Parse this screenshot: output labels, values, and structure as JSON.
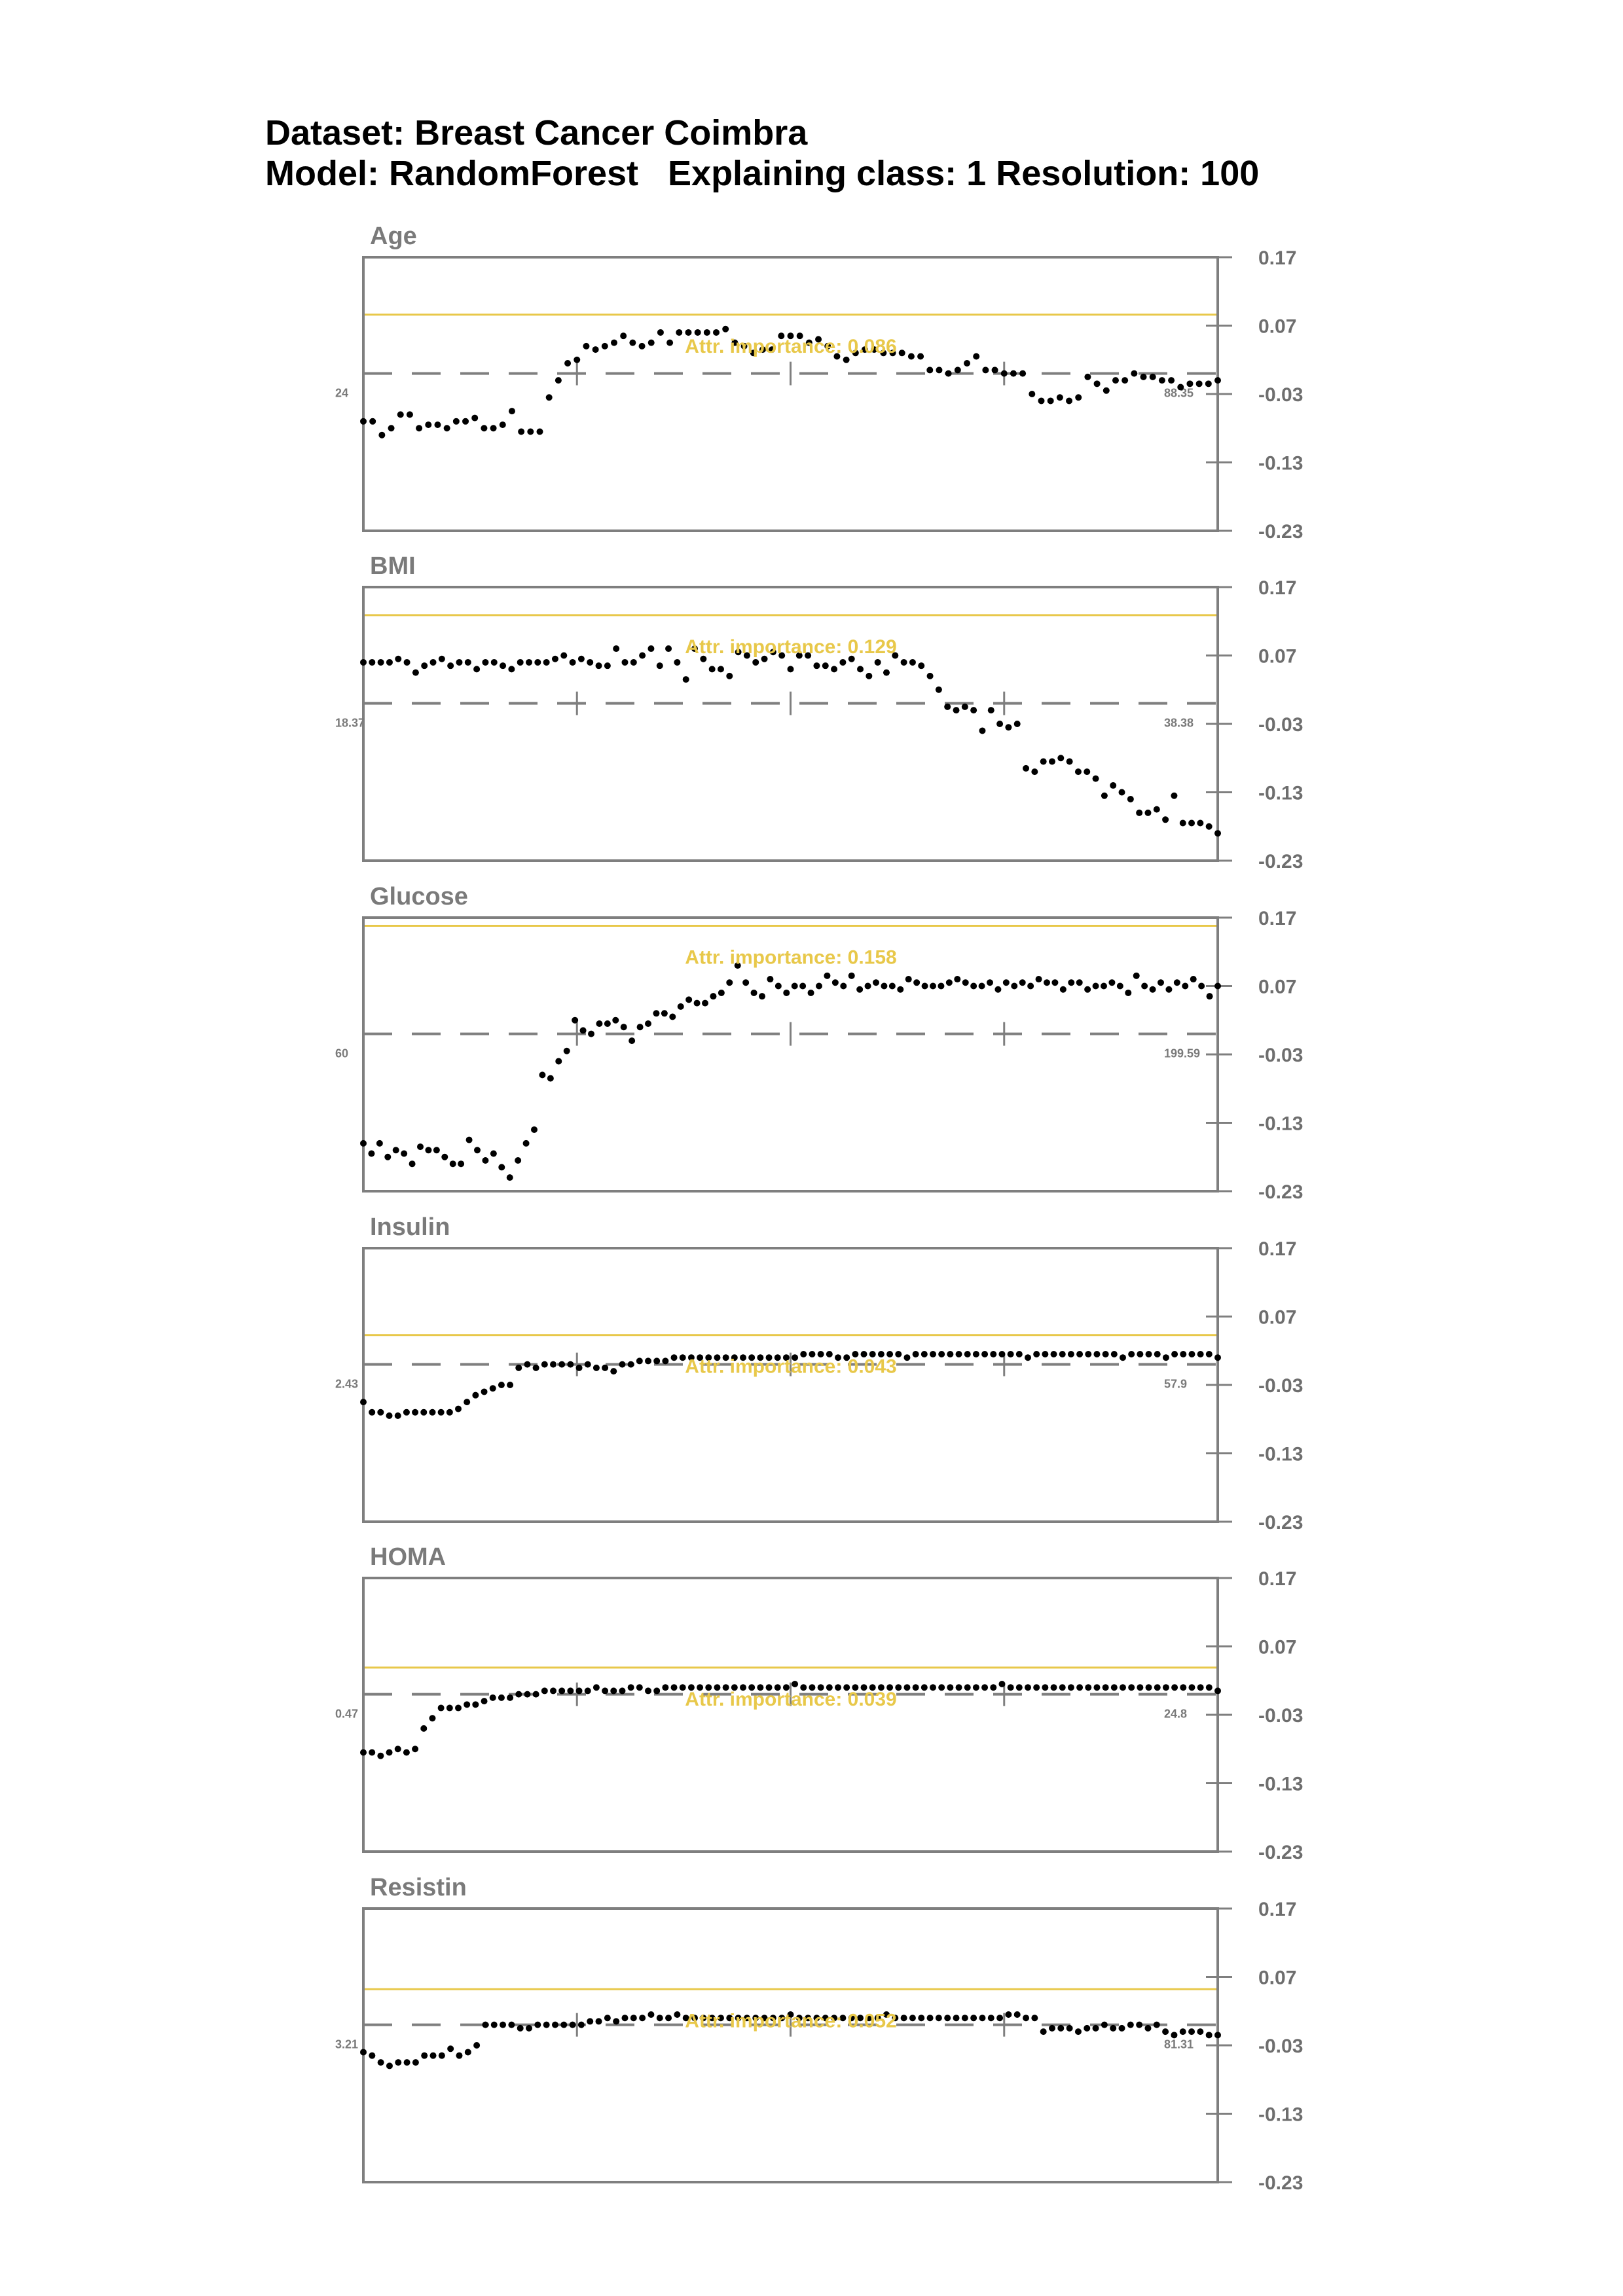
{
  "header": {
    "line1": "Dataset: Breast Cancer Coimbra",
    "line2": "Model: RandomForest   Explaining class: 1 Resolution: 100"
  },
  "colors": {
    "frame": "#7f7f7f",
    "importance_line": "#e8c84a",
    "points": "#000000",
    "baseline": "#7f7f7f"
  },
  "chart_data": [
    {
      "type": "scatter",
      "title": "Age",
      "importance_label": "Attr. importance: 0.086",
      "importance_value": 0.086,
      "x_min_label": "24",
      "x_max_label": "88.35",
      "ylim": [
        -0.23,
        0.17
      ],
      "yticks": [
        "0.17",
        "0.07",
        "-0.03",
        "-0.13",
        "-0.23"
      ],
      "baseline": 0.0,
      "values": [
        -0.07,
        -0.07,
        -0.09,
        -0.08,
        -0.06,
        -0.06,
        -0.08,
        -0.075,
        -0.075,
        -0.08,
        -0.07,
        -0.07,
        -0.065,
        -0.08,
        -0.08,
        -0.075,
        -0.055,
        -0.085,
        -0.085,
        -0.085,
        -0.035,
        -0.01,
        0.015,
        0.02,
        0.04,
        0.035,
        0.04,
        0.045,
        0.055,
        0.045,
        0.04,
        0.045,
        0.06,
        0.045,
        0.06,
        0.06,
        0.06,
        0.06,
        0.06,
        0.065,
        0.045,
        0.04,
        0.03,
        0.035,
        0.035,
        0.055,
        0.055,
        0.055,
        0.045,
        0.05,
        0.04,
        0.025,
        0.02,
        0.03,
        0.035,
        0.035,
        0.03,
        0.03,
        0.03,
        0.025,
        0.025,
        0.005,
        0.005,
        0.0,
        0.005,
        0.015,
        0.025,
        0.005,
        0.005,
        0.0,
        0.0,
        0.0,
        -0.03,
        -0.04,
        -0.04,
        -0.035,
        -0.04,
        -0.035,
        -0.005,
        -0.015,
        -0.025,
        -0.01,
        -0.01,
        0.0,
        -0.005,
        -0.005,
        -0.01,
        -0.01,
        -0.02,
        -0.015,
        -0.015,
        -0.015,
        -0.01
      ]
    },
    {
      "type": "scatter",
      "title": "BMI",
      "importance_label": "Attr. importance: 0.129",
      "importance_value": 0.129,
      "x_min_label": "18.37",
      "x_max_label": "38.38",
      "ylim": [
        -0.23,
        0.17
      ],
      "yticks": [
        "0.17",
        "0.07",
        "-0.03",
        "-0.13",
        "-0.23"
      ],
      "baseline": 0.0,
      "values": [
        0.06,
        0.06,
        0.06,
        0.06,
        0.065,
        0.06,
        0.045,
        0.055,
        0.06,
        0.065,
        0.055,
        0.06,
        0.06,
        0.05,
        0.06,
        0.06,
        0.055,
        0.05,
        0.06,
        0.06,
        0.06,
        0.06,
        0.065,
        0.07,
        0.06,
        0.065,
        0.06,
        0.055,
        0.055,
        0.08,
        0.06,
        0.06,
        0.07,
        0.08,
        0.055,
        0.08,
        0.06,
        0.035,
        0.08,
        0.065,
        0.05,
        0.05,
        0.04,
        0.075,
        0.07,
        0.06,
        0.065,
        0.075,
        0.07,
        0.05,
        0.07,
        0.07,
        0.055,
        0.055,
        0.05,
        0.06,
        0.065,
        0.05,
        0.04,
        0.06,
        0.045,
        0.07,
        0.06,
        0.06,
        0.055,
        0.04,
        0.02,
        -0.005,
        -0.01,
        -0.005,
        -0.01,
        -0.04,
        -0.01,
        -0.03,
        -0.035,
        -0.03,
        -0.095,
        -0.1,
        -0.085,
        -0.085,
        -0.08,
        -0.085,
        -0.1,
        -0.1,
        -0.11,
        -0.135,
        -0.12,
        -0.13,
        -0.14,
        -0.16,
        -0.16,
        -0.155,
        -0.17,
        -0.135,
        -0.175,
        -0.175,
        -0.175,
        -0.18,
        -0.19
      ]
    },
    {
      "type": "scatter",
      "title": "Glucose",
      "importance_label": "Attr. importance: 0.158",
      "importance_value": 0.158,
      "x_min_label": "60",
      "x_max_label": "199.59",
      "ylim": [
        -0.23,
        0.17
      ],
      "yticks": [
        "0.17",
        "0.07",
        "-0.03",
        "-0.13",
        "-0.23"
      ],
      "baseline": 0.0,
      "values": [
        -0.16,
        -0.175,
        -0.16,
        -0.18,
        -0.17,
        -0.175,
        -0.19,
        -0.165,
        -0.17,
        -0.17,
        -0.18,
        -0.19,
        -0.19,
        -0.155,
        -0.17,
        -0.185,
        -0.175,
        -0.195,
        -0.21,
        -0.185,
        -0.16,
        -0.14,
        -0.06,
        -0.065,
        -0.04,
        -0.025,
        0.02,
        0.005,
        0.0,
        0.015,
        0.015,
        0.02,
        0.01,
        -0.01,
        0.01,
        0.015,
        0.03,
        0.03,
        0.025,
        0.04,
        0.05,
        0.045,
        0.045,
        0.055,
        0.06,
        0.075,
        0.1,
        0.075,
        0.06,
        0.055,
        0.08,
        0.07,
        0.06,
        0.07,
        0.07,
        0.06,
        0.07,
        0.085,
        0.075,
        0.07,
        0.085,
        0.065,
        0.07,
        0.075,
        0.07,
        0.07,
        0.065,
        0.08,
        0.075,
        0.07,
        0.07,
        0.07,
        0.075,
        0.08,
        0.075,
        0.07,
        0.07,
        0.075,
        0.065,
        0.075,
        0.07,
        0.075,
        0.07,
        0.08,
        0.075,
        0.075,
        0.065,
        0.075,
        0.075,
        0.065,
        0.07,
        0.07,
        0.075,
        0.07,
        0.06,
        0.085,
        0.07,
        0.065,
        0.075,
        0.065,
        0.075,
        0.07,
        0.08,
        0.07,
        0.055,
        0.07
      ]
    },
    {
      "type": "scatter",
      "title": "Insulin",
      "importance_label": "Attr. importance: 0.043",
      "importance_value": 0.043,
      "x_min_label": "2.43",
      "x_max_label": "57.9",
      "ylim": [
        -0.23,
        0.17
      ],
      "yticks": [
        "0.17",
        "0.07",
        "-0.03",
        "-0.13",
        "-0.23"
      ],
      "baseline": 0.0,
      "values": [
        -0.055,
        -0.07,
        -0.07,
        -0.075,
        -0.075,
        -0.07,
        -0.07,
        -0.07,
        -0.07,
        -0.07,
        -0.07,
        -0.065,
        -0.055,
        -0.045,
        -0.04,
        -0.035,
        -0.03,
        -0.03,
        -0.005,
        0.0,
        -0.005,
        0.0,
        0.0,
        0.0,
        0.0,
        -0.005,
        0.0,
        -0.005,
        -0.005,
        -0.01,
        0.0,
        0.0,
        0.005,
        0.005,
        0.005,
        0.005,
        0.01,
        0.01,
        0.01,
        0.01,
        0.01,
        0.01,
        0.01,
        0.01,
        0.01,
        0.01,
        0.01,
        0.01,
        0.01,
        0.01,
        0.01,
        0.015,
        0.015,
        0.015,
        0.015,
        0.01,
        0.01,
        0.015,
        0.015,
        0.015,
        0.015,
        0.015,
        0.015,
        0.01,
        0.015,
        0.015,
        0.015,
        0.015,
        0.015,
        0.015,
        0.015,
        0.015,
        0.015,
        0.015,
        0.015,
        0.015,
        0.015,
        0.01,
        0.015,
        0.015,
        0.015,
        0.015,
        0.015,
        0.015,
        0.015,
        0.015,
        0.015,
        0.015,
        0.01,
        0.015,
        0.015,
        0.015,
        0.015,
        0.01,
        0.015,
        0.015,
        0.015,
        0.015,
        0.015,
        0.01
      ]
    },
    {
      "type": "scatter",
      "title": "HOMA",
      "importance_label": "Attr. importance: 0.039",
      "importance_value": 0.039,
      "x_min_label": "0.47",
      "x_max_label": "24.8",
      "ylim": [
        -0.23,
        0.17
      ],
      "yticks": [
        "0.17",
        "0.07",
        "-0.03",
        "-0.13",
        "-0.23"
      ],
      "baseline": 0.0,
      "values": [
        -0.085,
        -0.085,
        -0.09,
        -0.085,
        -0.08,
        -0.085,
        -0.08,
        -0.05,
        -0.035,
        -0.02,
        -0.02,
        -0.02,
        -0.015,
        -0.015,
        -0.01,
        -0.005,
        -0.005,
        -0.005,
        0.0,
        0.0,
        0.0,
        0.005,
        0.005,
        0.005,
        0.005,
        0.005,
        0.005,
        0.01,
        0.005,
        0.005,
        0.005,
        0.01,
        0.01,
        0.005,
        0.005,
        0.01,
        0.01,
        0.01,
        0.01,
        0.01,
        0.01,
        0.01,
        0.01,
        0.01,
        0.01,
        0.01,
        0.01,
        0.01,
        0.01,
        0.01,
        0.015,
        0.01,
        0.01,
        0.01,
        0.01,
        0.01,
        0.01,
        0.01,
        0.01,
        0.01,
        0.01,
        0.01,
        0.01,
        0.01,
        0.01,
        0.01,
        0.01,
        0.01,
        0.01,
        0.01,
        0.01,
        0.01,
        0.01,
        0.01,
        0.015,
        0.01,
        0.01,
        0.01,
        0.01,
        0.01,
        0.01,
        0.01,
        0.01,
        0.01,
        0.01,
        0.01,
        0.01,
        0.01,
        0.01,
        0.01,
        0.01,
        0.01,
        0.01,
        0.01,
        0.01,
        0.01,
        0.01,
        0.01,
        0.01,
        0.005
      ]
    },
    {
      "type": "scatter",
      "title": "Resistin",
      "importance_label": "Attr. importance: 0.052",
      "importance_value": 0.052,
      "x_min_label": "3.21",
      "x_max_label": "81.31",
      "ylim": [
        -0.23,
        0.17
      ],
      "yticks": [
        "0.17",
        "0.07",
        "-0.03",
        "-0.13",
        "-0.23"
      ],
      "baseline": 0.0,
      "values": [
        -0.04,
        -0.045,
        -0.055,
        -0.06,
        -0.055,
        -0.055,
        -0.055,
        -0.045,
        -0.045,
        -0.045,
        -0.035,
        -0.045,
        -0.04,
        -0.03,
        0.0,
        0.0,
        0.0,
        0.0,
        -0.005,
        -0.005,
        0.0,
        0.0,
        0.0,
        0.0,
        0.0,
        0.0,
        0.005,
        0.005,
        0.01,
        0.005,
        0.01,
        0.01,
        0.01,
        0.015,
        0.01,
        0.01,
        0.015,
        0.01,
        0.01,
        0.01,
        0.01,
        0.01,
        0.01,
        0.01,
        0.01,
        0.01,
        0.01,
        0.01,
        0.01,
        0.015,
        0.01,
        0.01,
        0.01,
        0.01,
        0.01,
        0.01,
        0.01,
        0.01,
        0.01,
        0.01,
        0.015,
        0.01,
        0.01,
        0.01,
        0.01,
        0.01,
        0.01,
        0.01,
        0.01,
        0.01,
        0.01,
        0.01,
        0.01,
        0.01,
        0.015,
        0.015,
        0.01,
        0.01,
        -0.01,
        -0.005,
        -0.005,
        -0.005,
        -0.01,
        -0.005,
        -0.005,
        0.0,
        -0.005,
        -0.005,
        0.0,
        0.0,
        -0.005,
        0.0,
        -0.01,
        -0.015,
        -0.01,
        -0.01,
        -0.01,
        -0.015,
        -0.015
      ]
    }
  ]
}
